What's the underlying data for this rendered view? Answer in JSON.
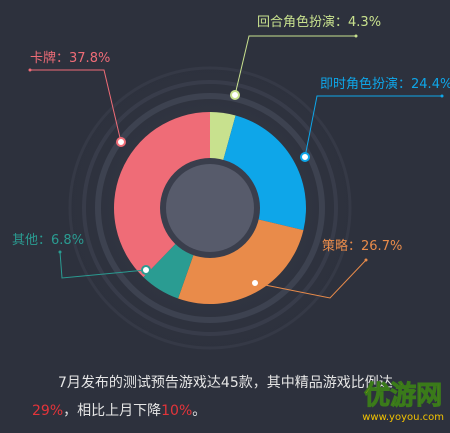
{
  "chart_data": {
    "type": "donut",
    "categories": [
      "回合角色扮演",
      "即时角色扮演",
      "策略",
      "其他",
      "卡牌"
    ],
    "values": [
      4.3,
      24.4,
      26.7,
      6.8,
      37.8
    ],
    "value_labels": [
      "：4.3%",
      "：24.4%",
      "：26.7%",
      "：6.8%",
      "：37.8%"
    ],
    "colors": [
      "#c8e18e",
      "#0ea6e9",
      "#e98b4a",
      "#2a9c92",
      "#ef6c77"
    ]
  },
  "caption": {
    "parts": [
      "7月发布的测试预告游戏达45款，其中精品游戏比例达",
      "29%",
      "，相比上月下降",
      "10%",
      "。"
    ]
  },
  "watermark": {
    "title": "优游网",
    "url": "www.yoyou.com"
  }
}
